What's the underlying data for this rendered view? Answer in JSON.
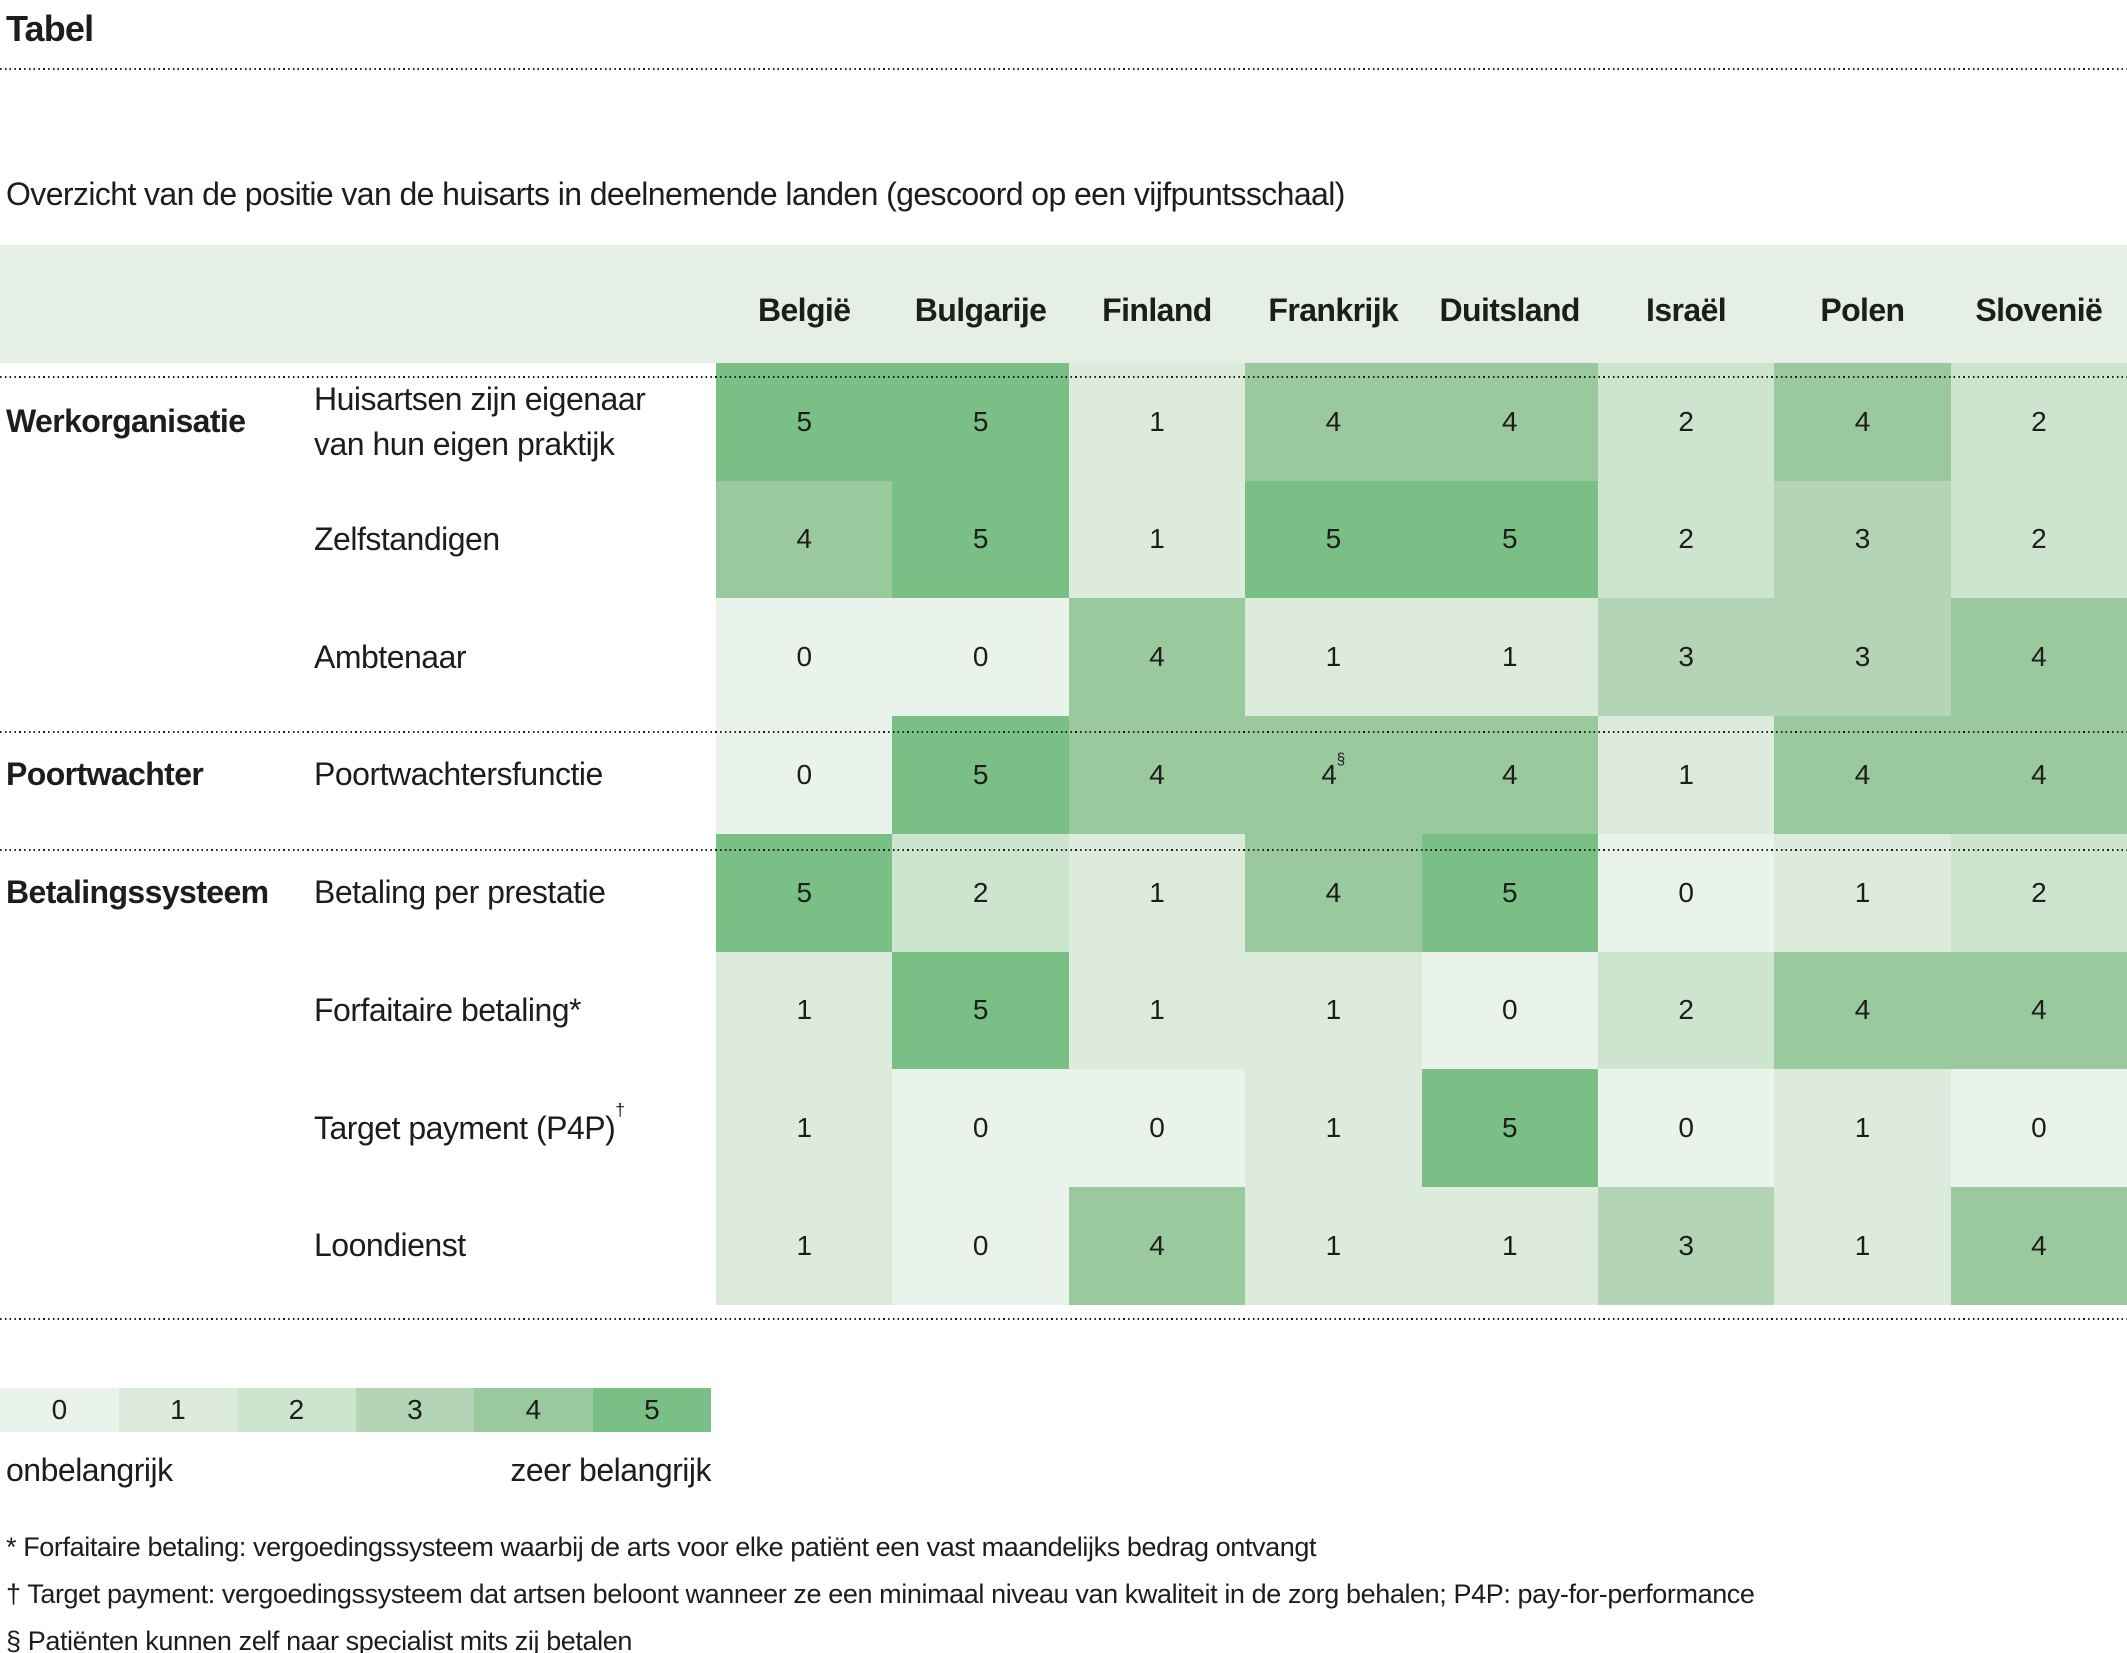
{
  "page": {
    "title": "Tabel",
    "caption": "Overzicht van de positie van de huisarts in deelnemende landen (gescoord op een vijfpuntsschaal)"
  },
  "chart_data": {
    "type": "heatmap",
    "title": "Overzicht van de positie van de huisarts in deelnemende landen (gescoord op een vijfpuntsschaal)",
    "columns": [
      "België",
      "Bulgarije",
      "Finland",
      "Frankrijk",
      "Duitsland",
      "Israël",
      "Polen",
      "Slovenië"
    ],
    "groups": [
      {
        "name": "Werkorganisatie",
        "rows": [
          {
            "label": "Huisartsen zijn eigenaar van hun eigen praktijk",
            "values": [
              5,
              5,
              1,
              4,
              4,
              2,
              4,
              2
            ]
          },
          {
            "label": "Zelfstandigen",
            "values": [
              4,
              5,
              1,
              5,
              5,
              2,
              3,
              2
            ]
          },
          {
            "label": "Ambtenaar",
            "values": [
              0,
              0,
              4,
              1,
              1,
              3,
              3,
              4
            ]
          }
        ]
      },
      {
        "name": "Poortwachter",
        "rows": [
          {
            "label": "Poortwachtersfunctie",
            "values": [
              0,
              5,
              4,
              4,
              4,
              1,
              4,
              4
            ],
            "cell_superscripts": {
              "3": "§"
            }
          }
        ]
      },
      {
        "name": "Betalingssysteem",
        "rows": [
          {
            "label": "Betaling per prestatie",
            "values": [
              5,
              2,
              1,
              4,
              5,
              0,
              1,
              2
            ]
          },
          {
            "label": "Forfaitaire betaling*",
            "values": [
              1,
              5,
              1,
              1,
              0,
              2,
              4,
              4
            ]
          },
          {
            "label": "Target payment (P4P)",
            "label_superscript": "†",
            "values": [
              1,
              0,
              0,
              1,
              5,
              0,
              1,
              0
            ]
          },
          {
            "label": "Loondienst",
            "values": [
              1,
              0,
              4,
              1,
              1,
              3,
              1,
              4
            ]
          }
        ]
      }
    ],
    "scale": {
      "values": [
        "0",
        "1",
        "2",
        "3",
        "4",
        "5"
      ],
      "colors": [
        "#eaf3eb",
        "#dcebdc",
        "#cde4ce",
        "#b4d5b5",
        "#9bc99e",
        "#7abf85"
      ],
      "header_background": "#e5efe6",
      "min_label": "onbelangrijk",
      "max_label": "zeer belangrijk"
    },
    "footnotes": [
      "* Forfaitaire betaling: vergoedingssysteem waarbij de arts voor elke patiënt een vast maandelijks bedrag ontvangt",
      "† Target payment: vergoedingssysteem dat artsen beloont wanneer ze een minimaal niveau van kwaliteit in de zorg behalen; P4P: pay-for-performance",
      "§ Patiënten kunnen zelf naar specialist mits zij betalen"
    ]
  }
}
